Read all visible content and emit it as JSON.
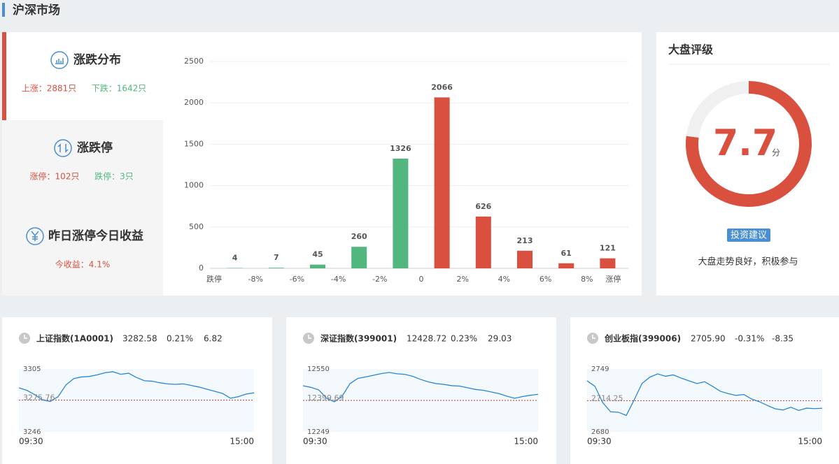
{
  "header": {
    "title": "沪深市场"
  },
  "sidebar": [
    {
      "title": "涨跌分布",
      "stats": [
        "上涨：2881只",
        "下跌：1642只"
      ]
    },
    {
      "title": "涨跌停",
      "stats": [
        "涨停：102只",
        "跌停：3只"
      ]
    },
    {
      "title": "昨日涨停今日收益",
      "stats": [
        "今收益：4.1%"
      ]
    }
  ],
  "distribution": {
    "type": "bar",
    "x_labels": [
      "跌停",
      "-8%",
      "-6%",
      "-4%",
      "-2%",
      "0",
      "2%",
      "4%",
      "6%",
      "8%",
      "涨停"
    ],
    "values": [
      4,
      7,
      45,
      260,
      1326,
      2066,
      626,
      213,
      61,
      121
    ],
    "colors": [
      "#52b77f",
      "#52b77f",
      "#52b77f",
      "#52b77f",
      "#52b77f",
      "#d9503f",
      "#d9503f",
      "#d9503f",
      "#d9503f",
      "#d9503f"
    ],
    "ylim": [
      0,
      2500
    ],
    "yticks": [
      0,
      500,
      1000,
      1500,
      2000,
      2500
    ],
    "grid": true
  },
  "rating": {
    "title": "大盘评级",
    "score": 7.7,
    "unit": "分",
    "range": [
      0,
      10
    ],
    "color": "#d9503f",
    "button": "投资建议",
    "advice": "大盘走势良好，积极参与"
  },
  "indices": [
    {
      "name": "上证指数(1A0001)",
      "price": "3282.58",
      "change_pct": "0.21%",
      "change": "6.82",
      "ylim": [
        3246,
        3305
      ],
      "yticks": [
        3246,
        3305
      ],
      "prev_close": 3275.76,
      "x_labels": [
        "09:30",
        "15:00"
      ],
      "values": [
        3287.3,
        3285,
        3281,
        3276,
        3274.5,
        3279,
        3290,
        3296,
        3297.5,
        3298,
        3299.5,
        3301.5,
        3302.4,
        3300,
        3301,
        3297,
        3294,
        3293.5,
        3292,
        3291,
        3290.6,
        3291,
        3289.5,
        3288,
        3286,
        3284,
        3282,
        3277.5,
        3279,
        3281.5,
        3282.58
      ]
    },
    {
      "name": "深证指数(399001)",
      "price": "12428.72",
      "change_pct": "0.23%",
      "change": "29.03",
      "ylim": [
        12249,
        12550
      ],
      "yticks": [
        12249,
        12550
      ],
      "prev_close": 12399.69,
      "x_labels": [
        "09:30",
        "15:00"
      ],
      "values": [
        12469.7,
        12462,
        12450,
        12410,
        12392.8,
        12420,
        12480,
        12505,
        12512,
        12520,
        12528,
        12533.3,
        12527,
        12524,
        12515,
        12500,
        12488,
        12480,
        12476,
        12470,
        12468,
        12460,
        12452,
        12448,
        12440,
        12432,
        12420,
        12409.5,
        12418,
        12424,
        12428.72
      ]
    },
    {
      "name": "创业板指(399006)",
      "price": "2705.90",
      "change_pct": "-0.31%",
      "change": "-8.35",
      "ylim": [
        2680,
        2749
      ],
      "yticks": [
        2680,
        2749
      ],
      "prev_close": 2714.25,
      "x_labels": [
        "09:30",
        "15:00"
      ],
      "values": [
        2736,
        2730,
        2712,
        2702,
        2701.5,
        2698,
        2715,
        2733,
        2740,
        2743.6,
        2741,
        2742.5,
        2739,
        2736,
        2733,
        2735,
        2730,
        2724.5,
        2722,
        2720,
        2721,
        2716,
        2713,
        2709,
        2705.3,
        2704,
        2707,
        2703.5,
        2706,
        2705.5,
        2705.9
      ]
    }
  ]
}
